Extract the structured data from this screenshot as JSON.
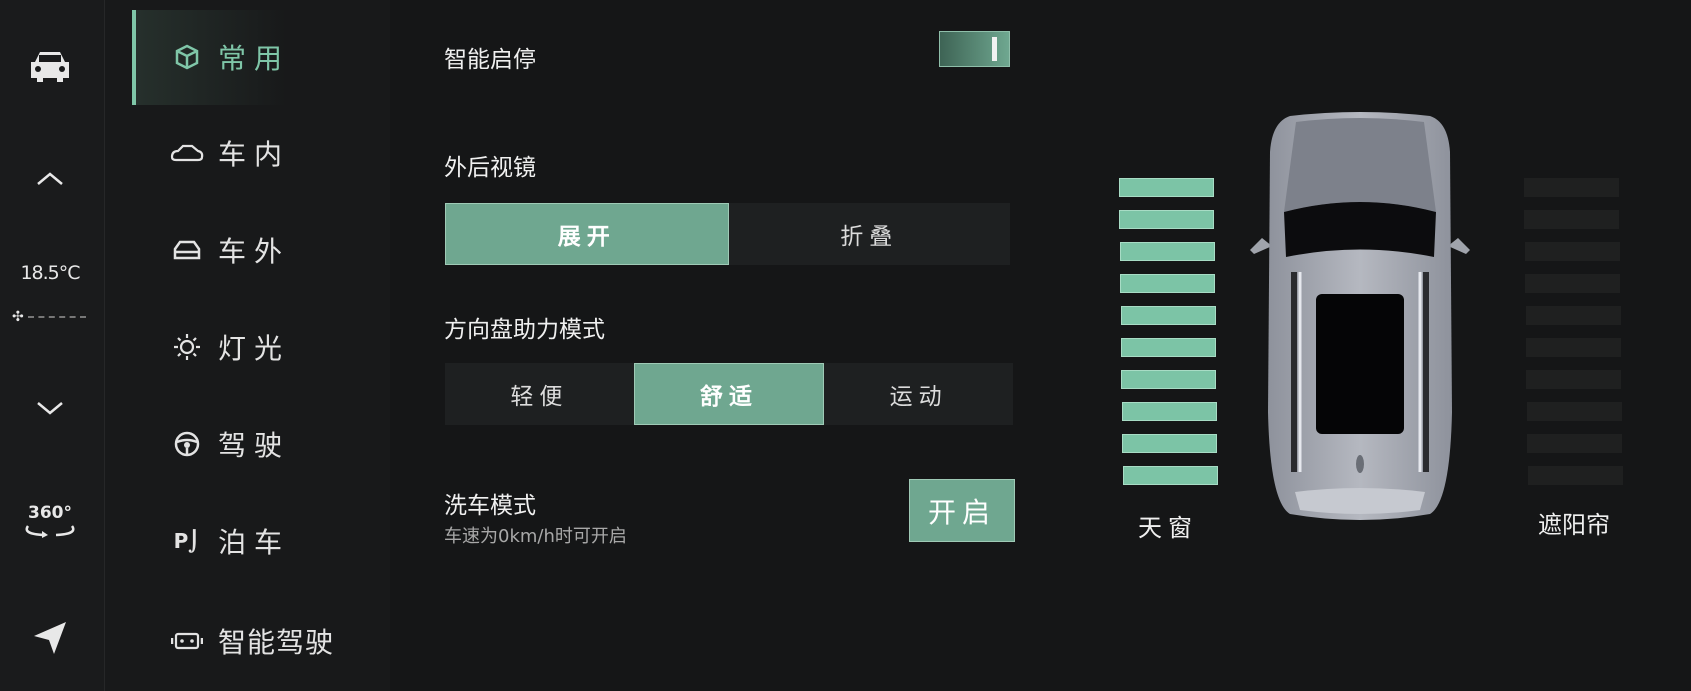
{
  "leftbar": {
    "temperature": "18.5°C",
    "icons": [
      "car-icon",
      "chevron-up-icon",
      "fan-icon",
      "chevron-down-icon",
      "360-view-icon",
      "navigation-icon"
    ],
    "view360_label": "360°"
  },
  "menu": {
    "items": [
      {
        "label": "常用",
        "icon": "cube-icon",
        "active": true
      },
      {
        "label": "车内",
        "icon": "car-interior-icon"
      },
      {
        "label": "车外",
        "icon": "car-exterior-icon"
      },
      {
        "label": "灯光",
        "icon": "sun-icon"
      },
      {
        "label": "驾驶",
        "icon": "steering-wheel-icon"
      },
      {
        "label": "泊车",
        "icon": "parking-icon"
      },
      {
        "label": "智能驾驶",
        "icon": "robot-icon"
      }
    ]
  },
  "settings": {
    "auto_stop": {
      "label": "智能启停",
      "on": true
    },
    "mirrors": {
      "label": "外后视镜",
      "options": [
        "展开",
        "折叠"
      ],
      "selected": 0
    },
    "steering": {
      "label": "方向盘助力模式",
      "options": [
        "轻便",
        "舒适",
        "运动"
      ],
      "selected": 1
    },
    "car_wash": {
      "label": "洗车模式",
      "hint": "车速为0km/h时可开启",
      "button": "开启"
    }
  },
  "vehicle": {
    "sunroof": {
      "label": "天窗",
      "level": 10,
      "max": 10
    },
    "sunshade": {
      "label": "遮阳帘",
      "level": 0,
      "max": 10
    },
    "accent": "#7fc6a8",
    "bar_on": "#7cc4a6",
    "bar_off": "#1f2020"
  }
}
